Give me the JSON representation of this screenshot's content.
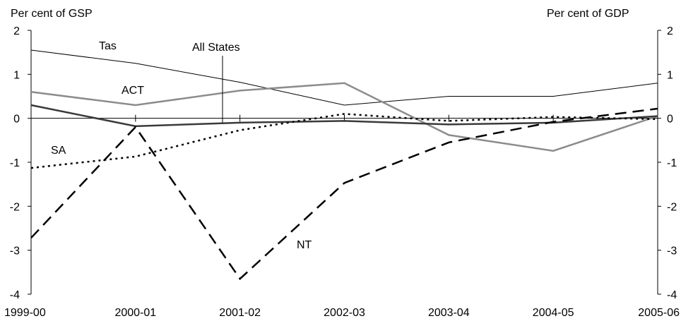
{
  "chart_data": {
    "type": "line",
    "title": "",
    "ylabel_left": "Per cent of GSP",
    "ylabel_right": "Per cent of GDP",
    "categories": [
      "1999-00",
      "2000-01",
      "2001-02",
      "2002-03",
      "2003-04",
      "2004-05",
      "2005-06"
    ],
    "ylim": [
      -4,
      2
    ],
    "yticks": [
      "2",
      "1",
      "0",
      "-1",
      "-2",
      "-3",
      "-4"
    ],
    "ytick_values": [
      2,
      1,
      0,
      -1,
      -2,
      -3,
      -4
    ],
    "grid": false,
    "series": [
      {
        "name": "Tas",
        "values": [
          1.55,
          1.25,
          0.82,
          0.3,
          0.5,
          0.5,
          0.8
        ],
        "color": "#000000",
        "style": "thin-solid"
      },
      {
        "name": "ACT",
        "values": [
          0.6,
          0.3,
          0.63,
          0.8,
          -0.38,
          -0.74,
          0.05
        ],
        "color": "#8c8c8c",
        "style": "solid"
      },
      {
        "name": "All States",
        "values": [
          0.3,
          -0.18,
          -0.1,
          -0.06,
          -0.14,
          -0.1,
          0.05
        ],
        "color": "#3a3a3a",
        "style": "thick-solid"
      },
      {
        "name": "SA",
        "values": [
          -1.13,
          -0.87,
          -0.27,
          0.1,
          -0.06,
          0.03,
          -0.02
        ],
        "color": "#000000",
        "style": "dotted"
      },
      {
        "name": "NT",
        "values": [
          -2.72,
          -0.2,
          -3.65,
          -1.47,
          -0.55,
          -0.08,
          0.22
        ],
        "color": "#000000",
        "style": "dashed"
      }
    ]
  }
}
